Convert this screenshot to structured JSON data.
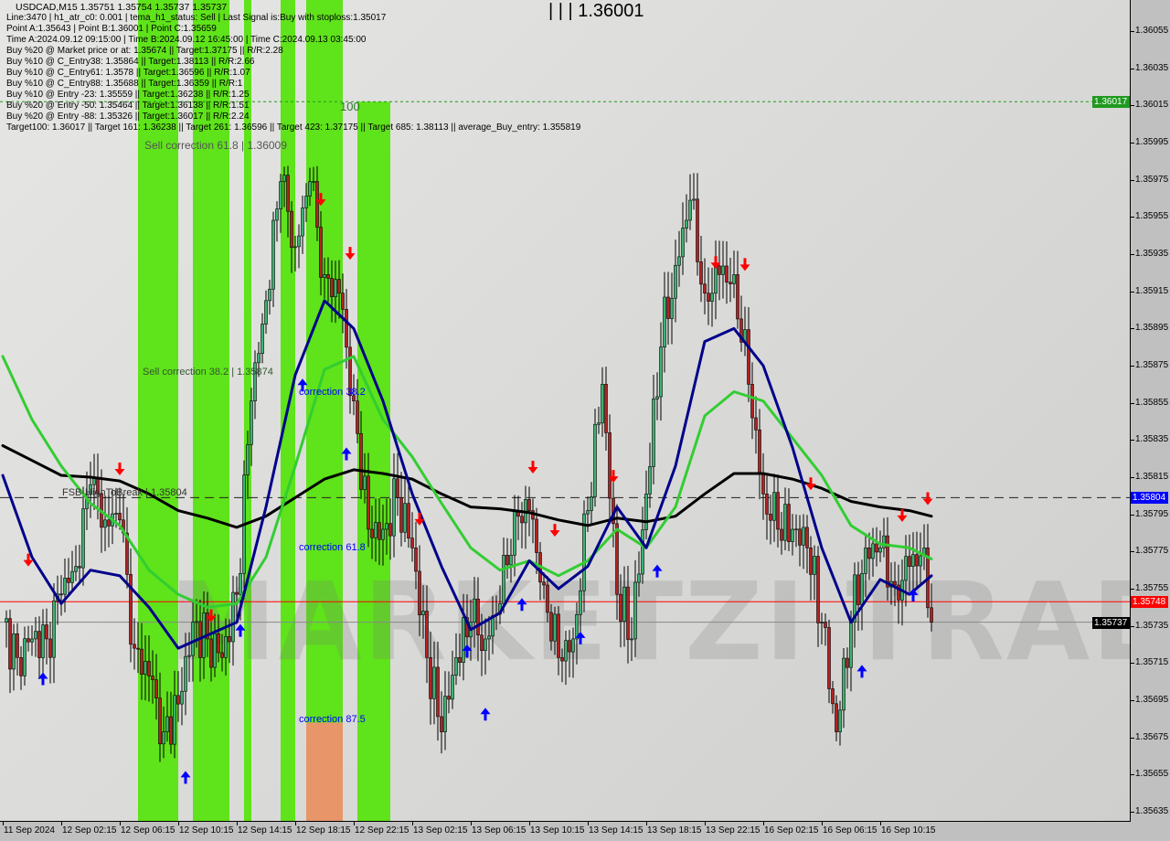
{
  "header": {
    "title": "USDCAD,M15  1.35751 1.35754 1.35737 1.35737",
    "lines": [
      "Line:3470 | h1_atr_c0: 0.001 | tema_h1_status: Sell | Last Signal is:Buy with stoploss:1.35017",
      "Point A:1.35643 | Point B:1.36001 | Point C:1.35659",
      "Time A:2024.09.12 09:15:00 | Time B:2024.09.12 16:45:00 | Time C:2024.09.13 03:45:00",
      "Buy %20 @ Market price or at: 1.35674 || Target:1.37175 || R/R:2.28",
      "Buy %10 @ C_Entry38: 1.35864 || Target:1.38113 || R/R:2.66",
      "Buy %10 @ C_Entry61: 1.3578 || Target:1.36596 || R/R:1.07",
      "Buy %10 @ C_Entry88: 1.35688 || Target:1.36359 || R/R:1",
      "Buy %10 @ Entry -23: 1.35559 || Target:1.36238 || R/R:1.25",
      "Buy %20 @ Entry -50: 1.35464 || Target:1.36138 || R/R:1.51",
      "Buy %20 @ Entry -88: 1.35326 || Target:1.36017 || R/R:2.24",
      "Target100: 1.36017 || Target 161: 1.36238 || Target 261: 1.36596 || Target 423: 1.37175 || Target 685: 1.38113 || average_Buy_entry: 1.355819"
    ]
  },
  "annotations": {
    "point_b": "| | | 1.36001",
    "level_100": "100",
    "sell_corr_618": "Sell correction 61.8 | 1.36009",
    "sell_corr_382": "Sell correction 38.2 | 1.35874",
    "corr_382": "correction 38.2",
    "corr_618": "correction 61.8",
    "corr_875": "correction 87.5",
    "fsb": "FSB-HighToBreak | 1.35804"
  },
  "watermark": "MARKETZI TRADE",
  "colors": {
    "bull": "#3cb371",
    "bear": "#b22222",
    "ma_slow": "#000000",
    "ma_fast": "#00008b",
    "ma_mid": "#32cd32",
    "zone": "#5fe31a",
    "zone_orange": "#e8956a",
    "sell_arrow": "#ff0000",
    "buy_arrow": "#0000ff"
  },
  "chart_data": {
    "type": "candlestick",
    "symbol": "USDCAD",
    "timeframe": "M15",
    "ylim": [
      1.35625,
      1.36075
    ],
    "y_ticks": [
      "1.36055",
      "1.36035",
      "1.36015",
      "1.35995",
      "1.35975",
      "1.35955",
      "1.35935",
      "1.35915",
      "1.35895",
      "1.35875",
      "1.35855",
      "1.35835",
      "1.35815",
      "1.35795",
      "1.35775",
      "1.35755",
      "1.35735",
      "1.35715",
      "1.35695",
      "1.35675",
      "1.35655",
      "1.35635"
    ],
    "x_ticks": [
      "11 Sep 2024",
      "12 Sep 02:15",
      "12 Sep 06:15",
      "12 Sep 10:15",
      "12 Sep 14:15",
      "12 Sep 18:15",
      "12 Sep 22:15",
      "13 Sep 02:15",
      "13 Sep 06:15",
      "13 Sep 10:15",
      "13 Sep 14:15",
      "13 Sep 18:15",
      "13 Sep 22:15",
      "16 Sep 02:15",
      "16 Sep 06:15",
      "16 Sep 10:15"
    ],
    "price_levels": [
      {
        "price": 1.36017,
        "label": "1.36017",
        "color": "#1f9a1f",
        "style": "dotted"
      },
      {
        "price": 1.35804,
        "label": "1.35804",
        "color": "#0000ff",
        "style": "dashed-black"
      },
      {
        "price": 1.35748,
        "label": "1.35748",
        "color": "#ff0000",
        "style": "solid"
      },
      {
        "price": 1.35737,
        "label": "1.35737",
        "color": "#000000",
        "style": "solid-gray"
      }
    ],
    "closes": [
      [
        "11 Sep 22:15",
        1.35737
      ],
      [
        "11 Sep 23:15",
        1.35718
      ],
      [
        "12 Sep 00:15",
        1.35728
      ],
      [
        "12 Sep 01:15",
        1.35728
      ],
      [
        "12 Sep 02:15",
        1.35752
      ],
      [
        "12 Sep 03:15",
        1.35767
      ],
      [
        "12 Sep 04:15",
        1.35811
      ],
      [
        "12 Sep 05:15",
        1.35792
      ],
      [
        "12 Sep 06:15",
        1.35792
      ],
      [
        "12 Sep 07:15",
        1.35723
      ],
      [
        "12 Sep 08:15",
        1.35708
      ],
      [
        "12 Sep 09:15",
        1.35678
      ],
      [
        "12 Sep 10:15",
        1.35693
      ],
      [
        "12 Sep 11:15",
        1.35737
      ],
      [
        "12 Sep 12:15",
        1.35728
      ],
      [
        "12 Sep 13:15",
        1.35718
      ],
      [
        "12 Sep 14:15",
        1.35752
      ],
      [
        "12 Sep 15:15",
        1.35856
      ],
      [
        "12 Sep 16:15",
        1.3591
      ],
      [
        "12 Sep 17:15",
        1.35974
      ],
      [
        "12 Sep 18:15",
        1.35939
      ],
      [
        "12 Sep 19:15",
        1.35974
      ],
      [
        "12 Sep 20:15",
        1.35924
      ],
      [
        "12 Sep 21:15",
        1.35914
      ],
      [
        "12 Sep 22:15",
        1.35856
      ],
      [
        "12 Sep 23:15",
        1.35787
      ],
      [
        "13 Sep 00:15",
        1.35787
      ],
      [
        "13 Sep 01:15",
        1.35804
      ],
      [
        "13 Sep 02:15",
        1.35777
      ],
      [
        "13 Sep 03:15",
        1.35718
      ],
      [
        "13 Sep 04:15",
        1.35678
      ],
      [
        "13 Sep 05:15",
        1.35718
      ],
      [
        "13 Sep 06:15",
        1.35737
      ],
      [
        "13 Sep 07:15",
        1.35728
      ],
      [
        "13 Sep 08:15",
        1.35747
      ],
      [
        "13 Sep 09:15",
        1.35797
      ],
      [
        "13 Sep 10:15",
        1.35797
      ],
      [
        "13 Sep 11:15",
        1.35757
      ],
      [
        "13 Sep 12:15",
        1.35718
      ],
      [
        "13 Sep 13:15",
        1.35728
      ],
      [
        "13 Sep 14:15",
        1.35797
      ],
      [
        "13 Sep 15:15",
        1.35865
      ],
      [
        "13 Sep 16:15",
        1.35752
      ],
      [
        "13 Sep 17:15",
        1.35728
      ],
      [
        "13 Sep 18:15",
        1.35806
      ],
      [
        "13 Sep 19:15",
        1.35885
      ],
      [
        "13 Sep 20:15",
        1.35929
      ],
      [
        "13 Sep 21:15",
        1.35964
      ],
      [
        "13 Sep 22:15",
        1.35914
      ],
      [
        "13 Sep 23:15",
        1.35924
      ],
      [
        "16 Sep 00:15",
        1.35924
      ],
      [
        "16 Sep 01:15",
        1.35865
      ],
      [
        "16 Sep 02:15",
        1.35806
      ],
      [
        "16 Sep 03:15",
        1.35787
      ],
      [
        "16 Sep 04:15",
        1.35787
      ],
      [
        "16 Sep 05:15",
        1.35777
      ],
      [
        "16 Sep 06:15",
        1.35737
      ],
      [
        "16 Sep 07:15",
        1.35678
      ],
      [
        "16 Sep 08:15",
        1.35737
      ],
      [
        "16 Sep 09:15",
        1.35777
      ],
      [
        "16 Sep 10:15",
        1.35777
      ],
      [
        "16 Sep 11:15",
        1.35757
      ],
      [
        "16 Sep 12:15",
        1.35767
      ],
      [
        "16 Sep 13:15",
        1.35777
      ],
      [
        "16 Sep 13:45",
        1.35737
      ]
    ],
    "ma_times": [
      "11 Sep 22:15",
      "12 Sep 00:15",
      "12 Sep 02:15",
      "12 Sep 04:15",
      "12 Sep 06:15",
      "12 Sep 08:15",
      "12 Sep 10:15",
      "12 Sep 12:15",
      "12 Sep 14:15",
      "12 Sep 16:15",
      "12 Sep 18:15",
      "12 Sep 20:15",
      "12 Sep 22:15",
      "13 Sep 00:15",
      "13 Sep 02:15",
      "13 Sep 04:15",
      "13 Sep 06:15",
      "13 Sep 08:15",
      "13 Sep 10:15",
      "13 Sep 12:15",
      "13 Sep 14:15",
      "13 Sep 16:15",
      "13 Sep 18:15",
      "13 Sep 20:15",
      "13 Sep 22:15",
      "16 Sep 00:15",
      "16 Sep 02:15",
      "16 Sep 04:15",
      "16 Sep 06:15",
      "16 Sep 08:15",
      "16 Sep 10:15",
      "16 Sep 12:15",
      "16 Sep 13:45"
    ],
    "series": [
      {
        "key": "ma_slow",
        "values": [
          1.35832,
          1.35824,
          1.35816,
          1.35815,
          1.35813,
          1.35806,
          1.35797,
          1.35793,
          1.35788,
          1.35794,
          1.35804,
          1.35814,
          1.35819,
          1.35817,
          1.35814,
          1.35806,
          1.35799,
          1.35798,
          1.35796,
          1.35792,
          1.35789,
          1.35793,
          1.35791,
          1.35794,
          1.35806,
          1.35817,
          1.35817,
          1.35814,
          1.35809,
          1.35802,
          1.35799,
          1.35797,
          1.35794
        ]
      },
      {
        "key": "ma_mid",
        "values": [
          1.3588,
          1.35846,
          1.35821,
          1.35801,
          1.35789,
          1.35765,
          1.35752,
          1.35745,
          1.35747,
          1.35772,
          1.35821,
          1.35873,
          1.3588,
          1.35846,
          1.35826,
          1.35801,
          1.35777,
          1.35765,
          1.3577,
          1.35762,
          1.3577,
          1.35787,
          1.35777,
          1.35799,
          1.35848,
          1.35861,
          1.35856,
          1.35836,
          1.35816,
          1.35789,
          1.35779,
          1.35777,
          1.35771
        ]
      },
      {
        "key": "ma_fast",
        "values": [
          1.35816,
          1.35772,
          1.35747,
          1.35765,
          1.35762,
          1.35745,
          1.35723,
          1.3573,
          1.35737,
          1.35799,
          1.3587,
          1.3591,
          1.35895,
          1.35856,
          1.35806,
          1.35767,
          1.35733,
          1.35742,
          1.3577,
          1.35755,
          1.35767,
          1.35799,
          1.35777,
          1.35821,
          1.35888,
          1.35895,
          1.35875,
          1.35831,
          1.35777,
          1.35737,
          1.3576,
          1.35752,
          1.35762
        ]
      }
    ],
    "zones": [
      {
        "start": "12 Sep 07:30",
        "end": "12 Sep 10:15",
        "top": 1.36075
      },
      {
        "start": "12 Sep 11:15",
        "end": "12 Sep 13:45",
        "top": 1.36075
      },
      {
        "start": "12 Sep 14:45",
        "end": "12 Sep 15:15",
        "top": 1.36075
      },
      {
        "start": "12 Sep 17:15",
        "end": "12 Sep 18:15",
        "top": 1.36075
      },
      {
        "start": "12 Sep 19:00",
        "end": "12 Sep 21:30",
        "top": 1.36075,
        "orange_below": 1.35683
      },
      {
        "start": "12 Sep 22:30",
        "end": "13 Sep 00:45",
        "top": 1.36017
      }
    ],
    "sell_arrows": [
      [
        "12 Sep 00:00",
        1.35767
      ],
      [
        "12 Sep 06:15",
        1.35816
      ],
      [
        "12 Sep 12:30",
        1.35737
      ],
      [
        "12 Sep 20:00",
        1.35961
      ],
      [
        "12 Sep 22:00",
        1.35932
      ],
      [
        "13 Sep 02:45",
        1.35789
      ],
      [
        "13 Sep 10:30",
        1.35817
      ],
      [
        "13 Sep 12:00",
        1.35783
      ],
      [
        "13 Sep 16:00",
        1.35812
      ],
      [
        "13 Sep 23:00",
        1.35927
      ],
      [
        "16 Sep 01:00",
        1.35926
      ],
      [
        "16 Sep 05:30",
        1.35808
      ],
      [
        "16 Sep 11:45",
        1.35791
      ],
      [
        "16 Sep 13:30",
        1.358
      ]
    ],
    "buy_arrows": [
      [
        "12 Sep 01:00",
        1.3571
      ],
      [
        "12 Sep 10:45",
        1.35657
      ],
      [
        "12 Sep 14:30",
        1.35736
      ],
      [
        "12 Sep 18:45",
        1.35868
      ],
      [
        "12 Sep 21:45",
        1.35831
      ],
      [
        "13 Sep 06:00",
        1.35725
      ],
      [
        "13 Sep 07:15",
        1.35691
      ],
      [
        "13 Sep 09:45",
        1.3575
      ],
      [
        "13 Sep 13:45",
        1.35732
      ],
      [
        "13 Sep 19:00",
        1.35768
      ],
      [
        "16 Sep 09:00",
        1.35714
      ],
      [
        "16 Sep 12:30",
        1.35755
      ]
    ]
  }
}
